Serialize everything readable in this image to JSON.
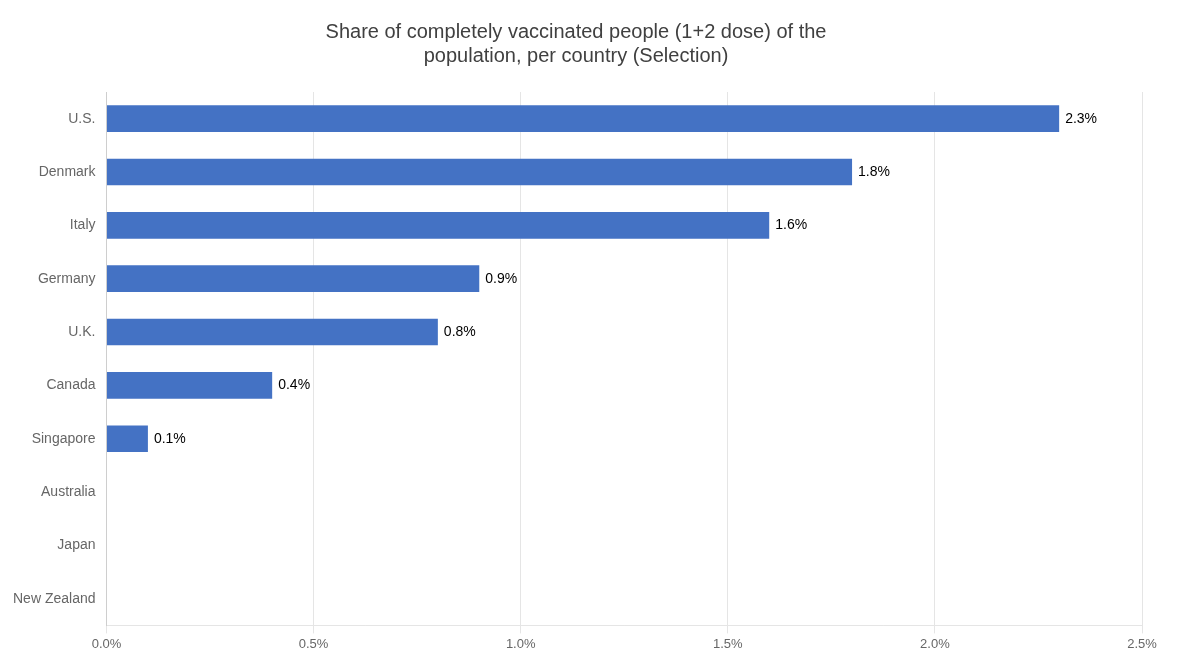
{
  "chart_data": {
    "type": "bar",
    "orientation": "horizontal",
    "title": "Share of completely vaccinated people (1+2 dose) of the\npopulation, per country (Selection)",
    "categories": [
      "U.S.",
      "Denmark",
      "Italy",
      "Germany",
      "U.K.",
      "Canada",
      "Singapore",
      "Australia",
      "Japan",
      "New Zealand"
    ],
    "values": [
      2.3,
      1.8,
      1.6,
      0.9,
      0.8,
      0.4,
      0.1,
      0.0,
      0.0,
      0.0
    ],
    "value_labels": [
      "2.3%",
      "1.8%",
      "1.6%",
      "0.9%",
      "0.8%",
      "0.4%",
      "0.1%",
      null,
      null,
      null
    ],
    "data_labels": true,
    "color": "#4472C4",
    "xlim": [
      0,
      2.5
    ],
    "xticks": [
      {
        "value": 0.0,
        "label": "0.0%"
      },
      {
        "value": 0.5,
        "label": "0.5%"
      },
      {
        "value": 1.0,
        "label": "1.0%"
      },
      {
        "value": 1.5,
        "label": "1.5%"
      },
      {
        "value": 2.0,
        "label": "2.0%"
      },
      {
        "value": 2.5,
        "label": "2.5%"
      }
    ],
    "grid": true
  }
}
